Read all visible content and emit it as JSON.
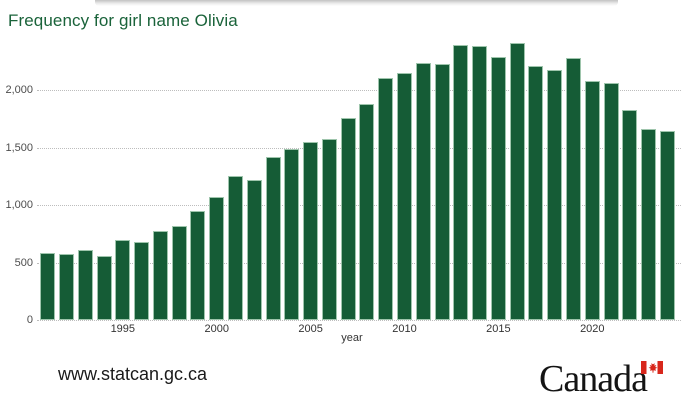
{
  "chart_data": {
    "type": "bar",
    "title": "Frequency for girl name Olivia",
    "xlabel": "year",
    "ylabel": "",
    "x": [
      1991,
      1992,
      1993,
      1994,
      1995,
      1996,
      1997,
      1998,
      1999,
      2000,
      2001,
      2002,
      2003,
      2004,
      2005,
      2006,
      2007,
      2008,
      2009,
      2010,
      2011,
      2012,
      2013,
      2014,
      2015,
      2016,
      2017,
      2018,
      2019,
      2020,
      2021,
      2022,
      2023,
      2024
    ],
    "values": [
      580,
      575,
      610,
      555,
      695,
      675,
      770,
      815,
      945,
      1070,
      1250,
      1215,
      1415,
      1485,
      1550,
      1570,
      1760,
      1880,
      2100,
      2150,
      2235,
      2225,
      2390,
      2385,
      2290,
      2405,
      2210,
      2175,
      2275,
      2080,
      2065,
      1825,
      1660,
      1640
    ],
    "y_ticks": [
      0,
      500,
      1000,
      1500,
      2000
    ],
    "y_tick_labels": [
      "0",
      "500",
      "1,000",
      "1,500",
      "2,000"
    ],
    "x_tick_years": [
      1995,
      2000,
      2005,
      2010,
      2015,
      2020
    ],
    "x_tick_labels": [
      "1995",
      "2000",
      "2005",
      "2010",
      "2015",
      "2020"
    ],
    "ylim": [
      0,
      2435
    ],
    "grid": "horizontal-dotted",
    "legend": "none",
    "bar_color": "#155c36",
    "bar_stroke_color": "#9ec5ac",
    "title_color": "#1a633a"
  },
  "footer": {
    "url": "www.statcan.gc.ca",
    "wordmark": "Canada",
    "flag_red": "#d8271c"
  }
}
